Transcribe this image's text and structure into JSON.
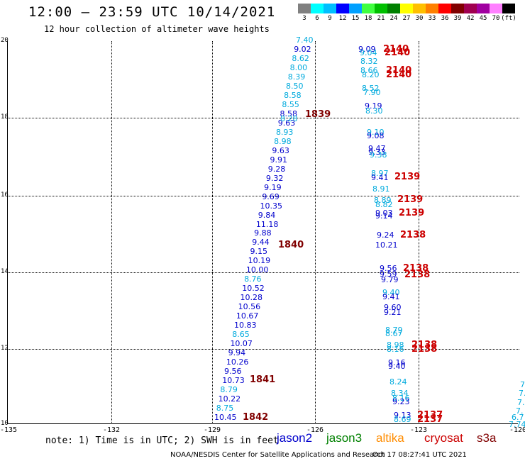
{
  "header": {
    "title": "12:00 – 23:59 UTC 10/14/2021",
    "subtitle": "12 hour collection of altimeter wave heights"
  },
  "colorbar": {
    "labels": [
      "3",
      "6",
      "9",
      "12",
      "15",
      "18",
      "21",
      "24",
      "27",
      "30",
      "33",
      "36",
      "39",
      "42",
      "45",
      "70",
      "(ft)"
    ],
    "colors": [
      "#808080",
      "#00ffff",
      "#00bfff",
      "#0000ff",
      "#00a0ff",
      "#40ff40",
      "#00c000",
      "#008000",
      "#ffff00",
      "#ffc000",
      "#ff8000",
      "#ff0000",
      "#800000",
      "#a00050",
      "#a000a0",
      "#ff80ff",
      "#000000"
    ]
  },
  "map": {
    "lat_labels": [
      "20",
      "18",
      "16",
      "14",
      "12",
      "10"
    ],
    "lon_labels": [
      "-135",
      "-132",
      "-129",
      "-126",
      "-123",
      "-120"
    ]
  },
  "colors": {
    "jason2": "#0000cc",
    "jason3": "#008000",
    "altika": "#ff8c00",
    "cryosat": "#cc0000",
    "s3a": "#800000",
    "light": "#00aadd"
  },
  "track_left": [
    {
      "v": "7.40",
      "c": "light"
    },
    {
      "v": "9.02",
      "c": "dark"
    },
    {
      "v": "8.62",
      "c": "light"
    },
    {
      "v": "8.00",
      "c": "light"
    },
    {
      "v": "8.39",
      "c": "light"
    },
    {
      "v": "8.50",
      "c": "light"
    },
    {
      "v": "8.58",
      "c": "light"
    },
    {
      "v": "8.55",
      "c": "light"
    },
    {
      "v": "8.58",
      "c": "dark"
    },
    {
      "v": "9.63",
      "c": "dark"
    },
    {
      "v": "8.93",
      "c": "light"
    },
    {
      "v": "8.98",
      "c": "light"
    },
    {
      "v": "9.63",
      "c": "dark"
    },
    {
      "v": "9.91",
      "c": "dark"
    },
    {
      "v": "9.28",
      "c": "dark"
    },
    {
      "v": "9.32",
      "c": "dark"
    },
    {
      "v": "9.19",
      "c": "dark"
    },
    {
      "v": "9.69",
      "c": "dark"
    },
    {
      "v": "10.35",
      "c": "dark"
    },
    {
      "v": "9.84",
      "c": "dark"
    },
    {
      "v": "11.18",
      "c": "dark"
    },
    {
      "v": "9.88",
      "c": "dark"
    },
    {
      "v": "9.44",
      "c": "dark"
    },
    {
      "v": "9.15",
      "c": "dark"
    },
    {
      "v": "10.19",
      "c": "dark"
    },
    {
      "v": "10.00",
      "c": "dark"
    },
    {
      "v": "8.76",
      "c": "light"
    },
    {
      "v": "10.52",
      "c": "dark"
    },
    {
      "v": "10.28",
      "c": "dark"
    },
    {
      "v": "10.56",
      "c": "dark"
    },
    {
      "v": "10.67",
      "c": "dark"
    },
    {
      "v": "10.83",
      "c": "dark"
    },
    {
      "v": "8.65",
      "c": "light"
    },
    {
      "v": "10.07",
      "c": "dark"
    },
    {
      "v": "9.94",
      "c": "dark"
    },
    {
      "v": "10.26",
      "c": "dark"
    },
    {
      "v": "9.56",
      "c": "dark"
    },
    {
      "v": "10.73",
      "c": "dark"
    },
    {
      "v": "8.79",
      "c": "light"
    },
    {
      "v": "10.22",
      "c": "dark"
    },
    {
      "v": "8.75",
      "c": "light"
    },
    {
      "v": "10.45",
      "c": "dark"
    }
  ],
  "track_left_extra": [
    {
      "v": "8.28",
      "c": "light"
    }
  ],
  "track_right": [
    {
      "v": "9.09",
      "c": "dark"
    },
    {
      "v": "9.04",
      "c": "light"
    },
    {
      "v": "8.32",
      "c": "light"
    },
    {
      "v": "8.66",
      "c": "light"
    },
    {
      "v": "8.20",
      "c": "light"
    },
    {
      "v": "8.52",
      "c": "light"
    },
    {
      "v": "7.90",
      "c": "light"
    },
    {
      "v": "9.19",
      "c": "dark"
    },
    {
      "v": "8.30",
      "c": "light"
    },
    {
      "v": "9.10",
      "c": "light"
    },
    {
      "v": "9.08",
      "c": "dark"
    },
    {
      "v": "9.47",
      "c": "dark"
    },
    {
      "v": "9.33",
      "c": "dark"
    },
    {
      "v": "9.38",
      "c": "light"
    },
    {
      "v": "8.97",
      "c": "light"
    },
    {
      "v": "9.41",
      "c": "dark"
    },
    {
      "v": "8.91",
      "c": "light"
    },
    {
      "v": "8.89",
      "c": "light"
    },
    {
      "v": "8.82",
      "c": "light"
    },
    {
      "v": "9.03",
      "c": "dark"
    },
    {
      "v": "9.14",
      "c": "dark"
    },
    {
      "v": "9.24",
      "c": "dark"
    },
    {
      "v": "10.21",
      "c": "dark"
    },
    {
      "v": "9.56",
      "c": "dark"
    },
    {
      "v": "9.59",
      "c": "dark"
    },
    {
      "v": "9.79",
      "c": "dark"
    },
    {
      "v": "9.40",
      "c": "light"
    },
    {
      "v": "9.41",
      "c": "dark"
    },
    {
      "v": "9.60",
      "c": "dark"
    },
    {
      "v": "9.21",
      "c": "dark"
    },
    {
      "v": "8.79",
      "c": "light"
    },
    {
      "v": "8.67",
      "c": "light"
    },
    {
      "v": "8.98",
      "c": "light"
    },
    {
      "v": "8.16",
      "c": "light"
    },
    {
      "v": "9.16",
      "c": "dark"
    },
    {
      "v": "9.40",
      "c": "dark"
    },
    {
      "v": "8.24",
      "c": "light"
    },
    {
      "v": "8.34",
      "c": "light"
    },
    {
      "v": "8.16",
      "c": "light"
    },
    {
      "v": "9.23",
      "c": "dark"
    },
    {
      "v": "9.13",
      "c": "dark"
    },
    {
      "v": "8.69",
      "c": "light"
    }
  ],
  "time_marks": [
    {
      "t": "1839",
      "sat": "s3a"
    },
    {
      "t": "1840",
      "sat": "s3a"
    },
    {
      "t": "1841",
      "sat": "s3a"
    },
    {
      "t": "1842",
      "sat": "s3a"
    },
    {
      "t": "2140",
      "sat": "cryosat"
    },
    {
      "t": "2140",
      "sat": "cryosat"
    },
    {
      "t": "2140",
      "sat": "cryosat"
    },
    {
      "t": "2140",
      "sat": "cryosat"
    },
    {
      "t": "2139",
      "sat": "cryosat"
    },
    {
      "t": "2139",
      "sat": "cryosat"
    },
    {
      "t": "2139",
      "sat": "cryosat"
    },
    {
      "t": "2138",
      "sat": "cryosat"
    },
    {
      "t": "2138",
      "sat": "cryosat"
    },
    {
      "t": "2138",
      "sat": "cryosat"
    },
    {
      "t": "2138",
      "sat": "cryosat"
    },
    {
      "t": "2138",
      "sat": "cryosat"
    },
    {
      "t": "2137",
      "sat": "cryosat"
    },
    {
      "t": "2137",
      "sat": "cryosat"
    }
  ],
  "edge_values": [
    "7.",
    "7.",
    "7.",
    "7.",
    "6.7",
    "7.74"
  ],
  "footer": {
    "note": "note: 1) Time is in UTC; 2) SWH is in feet",
    "sat_jason2": "jason2",
    "sat_jason3": "jason3",
    "sat_altika": "altika",
    "sat_cryosat": "cryosat",
    "sat_s3a": "s3a",
    "credit": "NOAA/NESDIS Center for Satellite Applications and Research",
    "stamp": "Oct 17 08:27:41 UTC 2021"
  }
}
